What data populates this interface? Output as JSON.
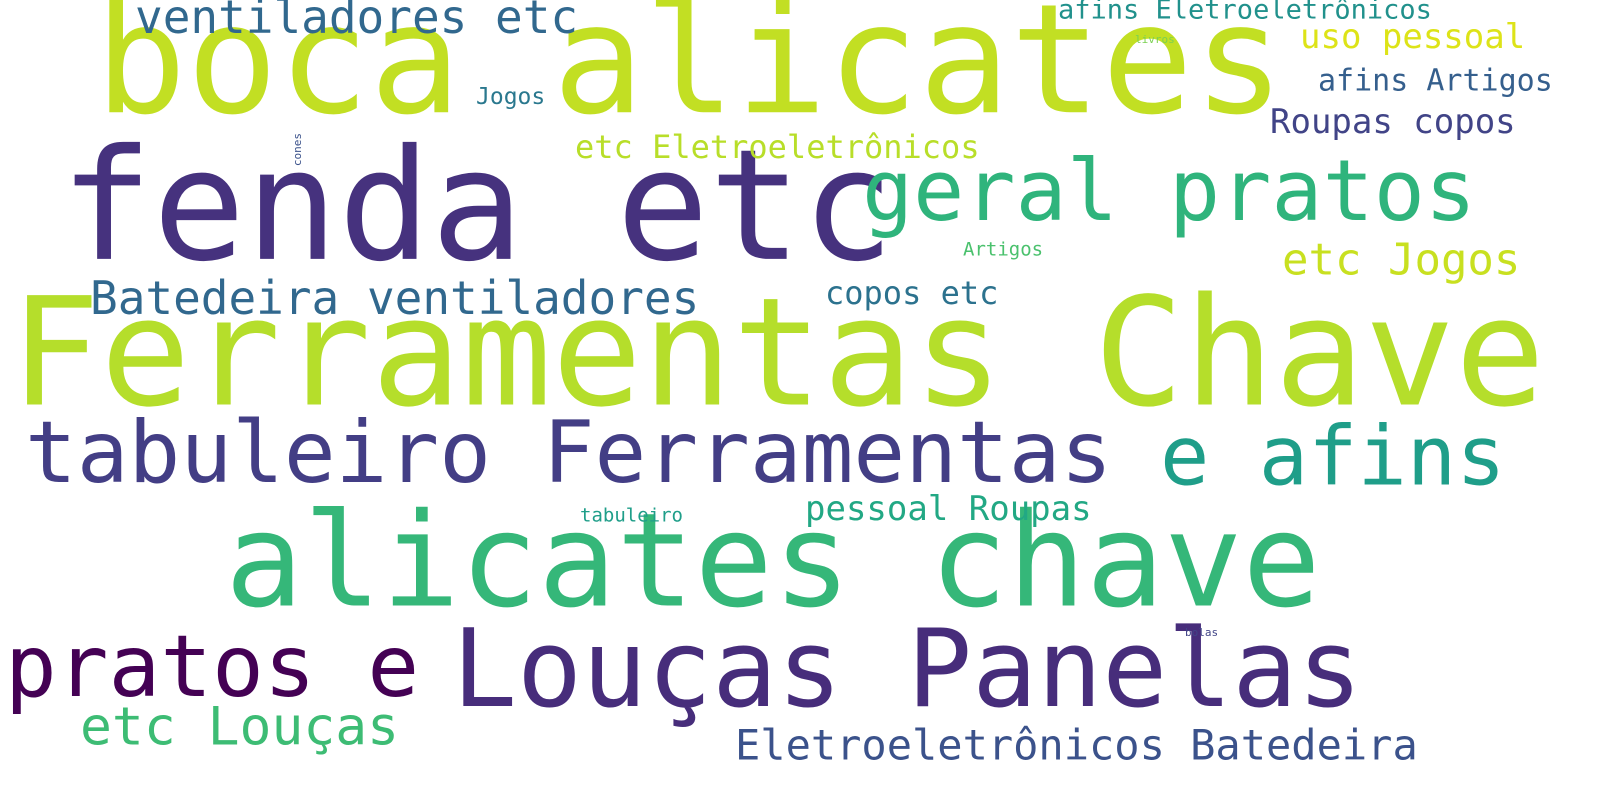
{
  "words": [
    {
      "text": "boca alicates",
      "color": "#c2df23"
    },
    {
      "text": "fenda etc",
      "color": "#46327e"
    },
    {
      "text": "Ferramentas Chave",
      "color": "#b5de2b"
    },
    {
      "text": "alicates chave",
      "color": "#35b779"
    },
    {
      "text": "Louças Panelas",
      "color": "#472d7b"
    },
    {
      "text": "tabuleiro Ferramentas",
      "color": "#433e85"
    },
    {
      "text": "geral pratos",
      "color": "#2fb47c"
    },
    {
      "text": "pratos e",
      "color": "#440154"
    },
    {
      "text": "e afins",
      "color": "#1f9e89"
    },
    {
      "text": "ventiladores etc",
      "color": "#31688e"
    },
    {
      "text": "Batedeira ventiladores",
      "color": "#31688e"
    },
    {
      "text": "etc Louças",
      "color": "#3dbc74"
    },
    {
      "text": "Eletroeletrônicos Batedeira",
      "color": "#3b528b"
    },
    {
      "text": "etc Jogos",
      "color": "#c8e020"
    },
    {
      "text": "pessoal Roupas",
      "color": "#22a884"
    },
    {
      "text": "copos etc",
      "color": "#2c728e"
    },
    {
      "text": "etc Eletroeletrônicos",
      "color": "#b8de29"
    },
    {
      "text": "Roupas copos",
      "color": "#414487"
    },
    {
      "text": "afins Eletroeletrônicos",
      "color": "#21918c"
    },
    {
      "text": "uso pessoal",
      "color": "#dde318"
    },
    {
      "text": "afins Artigos",
      "color": "#355f8d"
    },
    {
      "text": "Jogos",
      "color": "#2a788e"
    },
    {
      "text": "Artigos",
      "color": "#4ac16d"
    },
    {
      "text": "tabuleiro",
      "color": "#1f9e89"
    },
    {
      "text": "livros",
      "color": "#7ad151"
    },
    {
      "text": "cones",
      "color": "#3b528b"
    },
    {
      "text": "bolas",
      "color": "#414487"
    }
  ]
}
